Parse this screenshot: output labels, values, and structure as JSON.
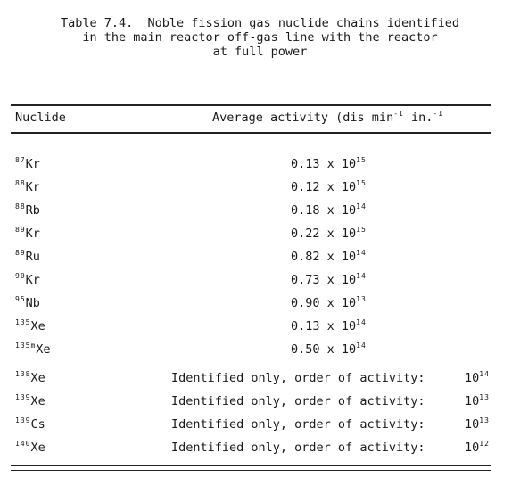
{
  "caption": {
    "line1": "Table 7.4.  Noble fission gas nuclide chains identified",
    "line2": "in the main reactor off-gas line with the reactor",
    "line3": "at full power"
  },
  "header": {
    "nuclide": "Nuclide",
    "activity_text": "Average activity (dis min",
    "activity_exp1": "-1",
    "activity_mid": " in.",
    "activity_exp2": "-1"
  },
  "rows": [
    {
      "mass": "87",
      "element": "Kr",
      "mantissa": "0.13 x 10",
      "exp": "15"
    },
    {
      "mass": "88",
      "element": "Kr",
      "mantissa": "0.12 x 10",
      "exp": "15"
    },
    {
      "mass": "88",
      "element": "Rb",
      "mantissa": "0.18 x 10",
      "exp": "14"
    },
    {
      "mass": "89",
      "element": "Kr",
      "mantissa": "0.22 x 10",
      "exp": "15"
    },
    {
      "mass": "89",
      "element": "Ru",
      "mantissa": "0.82 x 10",
      "exp": "14"
    },
    {
      "mass": "90",
      "element": "Kr",
      "mantissa": "0.73 x 10",
      "exp": "14"
    },
    {
      "mass": "95",
      "element": "Nb",
      "mantissa": "0.90 x 10",
      "exp": "13"
    },
    {
      "mass": "135",
      "element": "Xe",
      "mantissa": "0.13 x 10",
      "exp": "14"
    },
    {
      "mass": "135m",
      "element": "Xe",
      "mantissa": "0.50 x 10",
      "exp": "14"
    }
  ],
  "identified_rows": [
    {
      "mass": "138",
      "element": "Xe",
      "text": "Identified only, order of activity:",
      "order_base": "10",
      "order_exp": "14"
    },
    {
      "mass": "139",
      "element": "Xe",
      "text": "Identified only, order of activity:",
      "order_base": "10",
      "order_exp": "13"
    },
    {
      "mass": "139",
      "element": "Cs",
      "text": "Identified only, order of activity:",
      "order_base": "10",
      "order_exp": "13"
    },
    {
      "mass": "140",
      "element": "Xe",
      "text": "Identified only, order of activity:",
      "order_base": "10",
      "order_exp": "12"
    }
  ]
}
